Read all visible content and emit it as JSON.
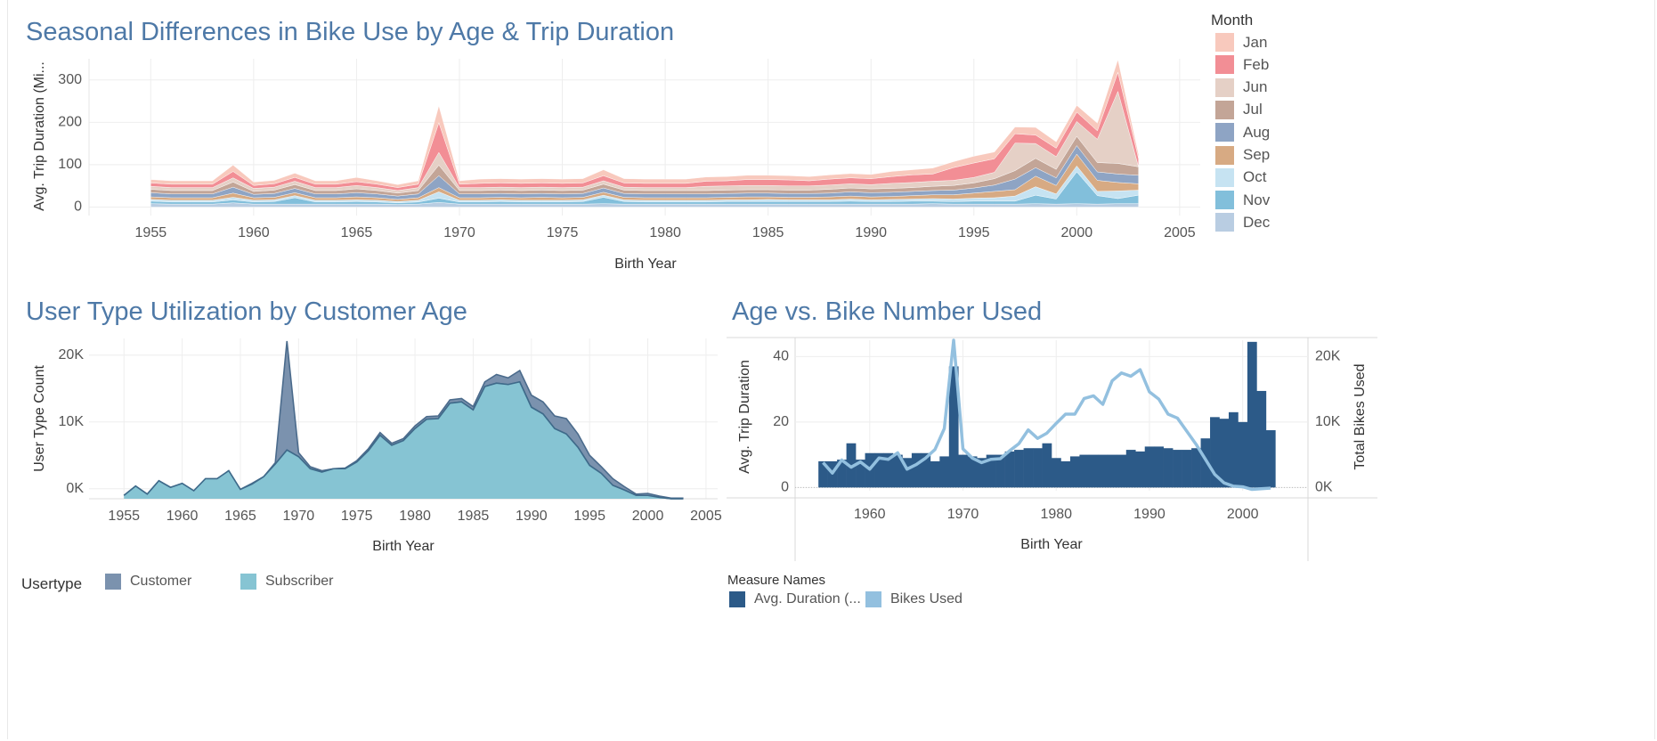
{
  "titles": {
    "seasonal": "Seasonal Differences in Bike Use by Age & Trip Duration",
    "usertype": "User Type Utilization by Customer Age",
    "agebike": "Age vs. Bike Number Used"
  },
  "month_legend": {
    "title": "Month",
    "items": [
      {
        "label": "Jan",
        "color": "#f8c9bd"
      },
      {
        "label": "Feb",
        "color": "#f28e95"
      },
      {
        "label": "Jun",
        "color": "#e5d0c6"
      },
      {
        "label": "Jul",
        "color": "#c3a597"
      },
      {
        "label": "Aug",
        "color": "#8ea4c4"
      },
      {
        "label": "Sep",
        "color": "#d7aa83"
      },
      {
        "label": "Oct",
        "color": "#c6e3f2"
      },
      {
        "label": "Nov",
        "color": "#82bfdb"
      },
      {
        "label": "Dec",
        "color": "#b9cde2"
      }
    ]
  },
  "usertype_legend": {
    "title": "Usertype",
    "items": [
      {
        "label": "Customer",
        "color": "#7b92ae"
      },
      {
        "label": "Subscriber",
        "color": "#86c4d3"
      }
    ]
  },
  "measure_legend": {
    "title": "Measure Names",
    "items": [
      {
        "label": "Avg. Duration (...",
        "color": "#2c5a88"
      },
      {
        "label": "Bikes Used",
        "color": "#93c0df"
      }
    ]
  },
  "chart_data": [
    {
      "type": "area",
      "stacked": true,
      "title": "Seasonal Differences in Bike Use by Age & Trip Duration",
      "xlabel": "Birth Year",
      "ylabel": "Avg. Trip Duration (Mi...",
      "xlim": [
        1952,
        2006
      ],
      "ylim": [
        -20,
        350
      ],
      "xticks": [
        1955,
        1960,
        1965,
        1970,
        1975,
        1980,
        1985,
        1990,
        1995,
        2000,
        2005
      ],
      "yticks": [
        0,
        100,
        200,
        300
      ],
      "x": [
        1955,
        1956,
        1957,
        1958,
        1959,
        1960,
        1961,
        1962,
        1963,
        1964,
        1965,
        1966,
        1967,
        1968,
        1969,
        1970,
        1971,
        1972,
        1973,
        1974,
        1975,
        1976,
        1977,
        1978,
        1979,
        1980,
        1981,
        1982,
        1983,
        1984,
        1985,
        1986,
        1987,
        1988,
        1989,
        1990,
        1991,
        1992,
        1993,
        1994,
        1995,
        1996,
        1997,
        1998,
        1999,
        2000,
        2001,
        2002,
        2003
      ],
      "series": [
        {
          "name": "Dec",
          "values": [
            8,
            7,
            7,
            7,
            10,
            7,
            7,
            7,
            7,
            7,
            7,
            7,
            6,
            7,
            11,
            7,
            7,
            7,
            7,
            7,
            7,
            7,
            8,
            7,
            7,
            7,
            7,
            7,
            7,
            7,
            7,
            7,
            7,
            7,
            7,
            7,
            7,
            7,
            8,
            7,
            7,
            7,
            7,
            8,
            7,
            8,
            7,
            8,
            8
          ]
        },
        {
          "name": "Nov",
          "values": [
            6,
            5,
            5,
            5,
            7,
            5,
            6,
            15,
            5,
            5,
            6,
            5,
            4,
            5,
            10,
            5,
            5,
            6,
            5,
            5,
            5,
            6,
            15,
            6,
            5,
            5,
            5,
            5,
            6,
            6,
            6,
            6,
            6,
            6,
            7,
            6,
            6,
            7,
            6,
            6,
            7,
            7,
            7,
            20,
            12,
            75,
            20,
            12,
            20
          ]
        },
        {
          "name": "Oct",
          "values": [
            4,
            4,
            4,
            4,
            6,
            4,
            4,
            5,
            4,
            4,
            4,
            4,
            3,
            4,
            15,
            4,
            4,
            4,
            4,
            4,
            4,
            4,
            5,
            4,
            4,
            4,
            4,
            4,
            4,
            4,
            5,
            4,
            4,
            4,
            5,
            4,
            5,
            5,
            6,
            6,
            7,
            8,
            12,
            20,
            12,
            14,
            10,
            18,
            12
          ]
        },
        {
          "name": "Sep",
          "values": [
            6,
            6,
            6,
            6,
            10,
            6,
            6,
            7,
            6,
            6,
            7,
            6,
            5,
            6,
            10,
            6,
            6,
            6,
            6,
            7,
            6,
            6,
            7,
            6,
            6,
            6,
            6,
            6,
            6,
            7,
            6,
            6,
            6,
            7,
            7,
            7,
            7,
            8,
            9,
            10,
            12,
            15,
            15,
            25,
            20,
            28,
            26,
            20,
            15
          ]
        },
        {
          "name": "Aug",
          "values": [
            10,
            9,
            9,
            9,
            14,
            8,
            9,
            10,
            9,
            9,
            10,
            9,
            8,
            9,
            28,
            9,
            9,
            9,
            9,
            9,
            9,
            9,
            10,
            9,
            9,
            9,
            9,
            9,
            9,
            9,
            9,
            9,
            9,
            9,
            10,
            10,
            10,
            10,
            10,
            11,
            12,
            15,
            25,
            20,
            18,
            20,
            20,
            20,
            20
          ]
        },
        {
          "name": "Jul",
          "values": [
            8,
            8,
            8,
            8,
            12,
            7,
            8,
            9,
            8,
            8,
            9,
            8,
            7,
            8,
            25,
            8,
            8,
            8,
            8,
            8,
            8,
            8,
            9,
            8,
            8,
            8,
            8,
            8,
            8,
            8,
            8,
            8,
            8,
            9,
            9,
            9,
            9,
            9,
            10,
            11,
            12,
            15,
            20,
            22,
            20,
            22,
            22,
            25,
            20
          ]
        },
        {
          "name": "Jun",
          "values": [
            7,
            7,
            7,
            7,
            10,
            7,
            7,
            8,
            7,
            7,
            8,
            7,
            6,
            7,
            30,
            7,
            7,
            7,
            7,
            7,
            7,
            7,
            8,
            7,
            7,
            7,
            7,
            10,
            10,
            10,
            10,
            10,
            10,
            10,
            10,
            10,
            12,
            12,
            12,
            12,
            13,
            15,
            65,
            35,
            30,
            35,
            55,
            170,
            0
          ]
        },
        {
          "name": "Feb",
          "values": [
            8,
            8,
            8,
            8,
            15,
            7,
            8,
            9,
            8,
            8,
            9,
            8,
            7,
            8,
            70,
            8,
            10,
            10,
            10,
            10,
            10,
            10,
            12,
            10,
            10,
            10,
            10,
            12,
            12,
            14,
            14,
            14,
            12,
            14,
            14,
            14,
            16,
            18,
            17,
            30,
            34,
            32,
            22,
            20,
            20,
            22,
            20,
            45,
            20
          ]
        },
        {
          "name": "Jan",
          "values": [
            8,
            8,
            8,
            8,
            15,
            8,
            8,
            10,
            8,
            8,
            10,
            8,
            7,
            8,
            40,
            8,
            10,
            10,
            10,
            10,
            10,
            10,
            14,
            10,
            10,
            10,
            10,
            10,
            10,
            10,
            10,
            10,
            10,
            10,
            10,
            10,
            12,
            12,
            14,
            14,
            16,
            16,
            16,
            18,
            15,
            16,
            18,
            30,
            10
          ]
        }
      ]
    },
    {
      "type": "area",
      "stacked": true,
      "title": "User Type Utilization by Customer Age",
      "xlabel": "Birth Year",
      "ylabel": "User Type Count",
      "xlim": [
        1952,
        2006
      ],
      "ylim": [
        -1500,
        22500
      ],
      "xticks": [
        1955,
        1960,
        1965,
        1970,
        1975,
        1980,
        1985,
        1990,
        1995,
        2000,
        2005
      ],
      "yticks": [
        0,
        10000,
        20000
      ],
      "ytick_labels": [
        "0K",
        "10K",
        "20K"
      ],
      "x": [
        1955,
        1956,
        1957,
        1958,
        1959,
        1960,
        1961,
        1962,
        1963,
        1964,
        1965,
        1966,
        1967,
        1968,
        1969,
        1970,
        1971,
        1972,
        1973,
        1974,
        1975,
        1976,
        1977,
        1978,
        1979,
        1980,
        1981,
        1982,
        1983,
        1984,
        1985,
        1986,
        1987,
        1988,
        1989,
        1990,
        1991,
        1992,
        1993,
        1994,
        1995,
        1996,
        1997,
        1998,
        1999,
        2000,
        2001,
        2002,
        2003
      ],
      "series": [
        {
          "name": "Subscriber",
          "values": [
            -1000,
            400,
            -800,
            1200,
            200,
            800,
            -300,
            1500,
            1500,
            2700,
            -100,
            700,
            1800,
            3700,
            5800,
            4800,
            3000,
            2500,
            3000,
            3000,
            4000,
            5700,
            8000,
            6500,
            7200,
            9000,
            10400,
            10500,
            12800,
            13000,
            11800,
            15300,
            15800,
            15600,
            16000,
            12200,
            11200,
            9000,
            8200,
            6200,
            3500,
            2300,
            500,
            -200,
            -1000,
            -1000,
            -1300,
            -1500,
            -1500
          ]
        },
        {
          "name": "Customer",
          "values": [
            0,
            0,
            0,
            0,
            0,
            0,
            0,
            0,
            0,
            0,
            0,
            100,
            0,
            200,
            16300,
            600,
            300,
            200,
            0,
            100,
            200,
            300,
            400,
            300,
            300,
            400,
            400,
            400,
            500,
            500,
            500,
            700,
            1300,
            1000,
            1700,
            1800,
            1800,
            1900,
            2300,
            2000,
            1500,
            1000,
            1000,
            500,
            200,
            300,
            200,
            100,
            100
          ]
        }
      ]
    },
    {
      "type": "bar",
      "dual_axis": true,
      "title": "Age vs. Bike Number Used",
      "xlabel": "Birth Year",
      "ylabel": "Avg. Trip Duration",
      "ylabel_right": "Total Bikes Used",
      "xlim": [
        1952,
        2007
      ],
      "ylim": [
        -1,
        45
      ],
      "ylim_right": [
        -500,
        22500
      ],
      "xticks": [
        1960,
        1970,
        1980,
        1990,
        2000
      ],
      "yticks": [
        0,
        20,
        40
      ],
      "yticks_right": [
        0,
        10000,
        20000
      ],
      "ytick_right_labels": [
        "0K",
        "10K",
        "20K"
      ],
      "x": [
        1955,
        1956,
        1957,
        1958,
        1959,
        1960,
        1961,
        1962,
        1963,
        1964,
        1965,
        1966,
        1967,
        1968,
        1969,
        1970,
        1971,
        1972,
        1973,
        1974,
        1975,
        1976,
        1977,
        1978,
        1979,
        1980,
        1981,
        1982,
        1983,
        1984,
        1985,
        1986,
        1987,
        1988,
        1989,
        1990,
        1991,
        1992,
        1993,
        1994,
        1995,
        1996,
        1997,
        1998,
        1999,
        2000,
        2001,
        2002,
        2003
      ],
      "series": [
        {
          "name": "Avg. Duration (...",
          "type": "bar",
          "values": [
            8,
            8,
            8.5,
            13.5,
            8.5,
            10.5,
            10.5,
            10.5,
            10,
            9,
            10.5,
            10.5,
            8,
            9.5,
            37,
            10,
            9.5,
            9,
            10,
            10,
            11,
            11.5,
            12,
            12,
            13.5,
            9,
            8,
            9.5,
            10,
            10,
            10,
            10,
            10,
            11.5,
            11,
            12.5,
            12.5,
            12,
            11.5,
            11.5,
            12,
            15,
            21.5,
            21,
            23,
            20,
            44.5,
            29.5,
            17.5
          ]
        },
        {
          "name": "Bikes Used",
          "type": "line",
          "values": [
            3800,
            2200,
            4200,
            3100,
            3900,
            2800,
            4500,
            4300,
            5300,
            2800,
            3500,
            4500,
            5800,
            9000,
            22500,
            5900,
            4500,
            3800,
            4300,
            4400,
            5600,
            6700,
            8800,
            7500,
            8300,
            9800,
            11200,
            11200,
            13600,
            14000,
            12700,
            16300,
            17500,
            17000,
            18000,
            14600,
            13500,
            11200,
            10600,
            8600,
            6600,
            4300,
            2000,
            700,
            200,
            100,
            -300,
            -200,
            -100
          ]
        }
      ]
    }
  ]
}
